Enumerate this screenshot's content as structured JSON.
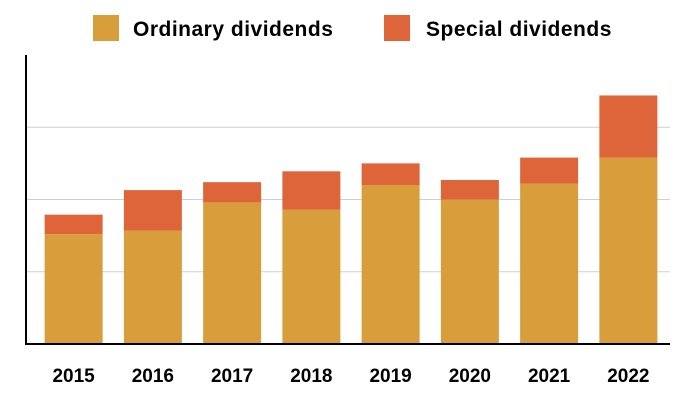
{
  "chart_data": {
    "type": "bar",
    "stacked": true,
    "categories": [
      "2015",
      "2016",
      "2017",
      "2018",
      "2019",
      "2020",
      "2021",
      "2022"
    ],
    "series": [
      {
        "name": "Ordinary dividends",
        "color": "#D89E3C",
        "values": [
          1.52,
          1.57,
          1.96,
          1.86,
          2.2,
          2.0,
          2.22,
          2.58
        ]
      },
      {
        "name": "Special dividends",
        "color": "#DE6539",
        "values": [
          0.27,
          0.56,
          0.28,
          0.53,
          0.3,
          0.27,
          0.36,
          0.86
        ]
      }
    ],
    "ylim": [
      0,
      4
    ],
    "yticks": [
      1,
      2,
      3
    ],
    "ytick_labels_shown": false,
    "grid": true,
    "legend": "top",
    "xlabel": "",
    "ylabel": ""
  }
}
